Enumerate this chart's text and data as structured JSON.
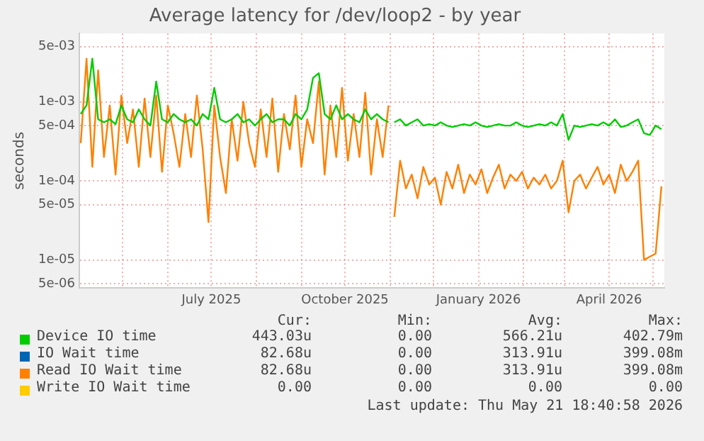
{
  "chart_data": {
    "type": "line",
    "title": "Average latency for /dev/loop2 - by year",
    "ylabel": "seconds",
    "log": "y",
    "grid": true,
    "legend": "bottom",
    "marker": "none",
    "line_style": "solid",
    "xlim": [
      "2025-04-01",
      "2026-05-09"
    ],
    "xticks": [
      {
        "value": "2025-05-01",
        "label": null
      },
      {
        "value": "2025-06-01",
        "label": null
      },
      {
        "value": "2025-07-01",
        "label": "July 2025"
      },
      {
        "value": "2025-08-01",
        "label": null
      },
      {
        "value": "2025-09-01",
        "label": null
      },
      {
        "value": "2025-10-01",
        "label": "October 2025"
      },
      {
        "value": "2025-11-01",
        "label": null
      },
      {
        "value": "2025-12-01",
        "label": null
      },
      {
        "value": "2026-01-01",
        "label": "January 2026"
      },
      {
        "value": "2026-02-01",
        "label": null
      },
      {
        "value": "2026-03-01",
        "label": null
      },
      {
        "value": "2026-04-01",
        "label": "April 2026"
      },
      {
        "value": "2026-05-01",
        "label": null
      }
    ],
    "ylim": [
      4.4e-06,
      0.0073
    ],
    "yticks": [
      {
        "value": 5e-06,
        "label": "5e-06"
      },
      {
        "value": 1e-05,
        "label": "1e-05"
      },
      {
        "value": 5e-05,
        "label": "5e-05"
      },
      {
        "value": 0.0001,
        "label": "1e-04"
      },
      {
        "value": 0.0005,
        "label": "5e-04"
      },
      {
        "value": 0.001,
        "label": "1e-03"
      },
      {
        "value": 0.005,
        "label": "5e-03"
      }
    ],
    "x": [
      "2025-04-02",
      "2025-04-06",
      "2025-04-10",
      "2025-04-14",
      "2025-04-18",
      "2025-04-22",
      "2025-04-26",
      "2025-04-30",
      "2025-05-04",
      "2025-05-08",
      "2025-05-12",
      "2025-05-16",
      "2025-05-20",
      "2025-05-24",
      "2025-05-28",
      "2025-06-01",
      "2025-06-05",
      "2025-06-09",
      "2025-06-13",
      "2025-06-17",
      "2025-06-21",
      "2025-06-25",
      "2025-06-29",
      "2025-07-03",
      "2025-07-07",
      "2025-07-11",
      "2025-07-15",
      "2025-07-19",
      "2025-07-23",
      "2025-07-27",
      "2025-07-31",
      "2025-08-04",
      "2025-08-08",
      "2025-08-12",
      "2025-08-16",
      "2025-08-20",
      "2025-08-24",
      "2025-08-28",
      "2025-09-01",
      "2025-09-05",
      "2025-09-09",
      "2025-09-13",
      "2025-09-17",
      "2025-09-21",
      "2025-09-25",
      "2025-09-29",
      "2025-10-03",
      "2025-10-07",
      "2025-10-11",
      "2025-10-15",
      "2025-10-19",
      "2025-10-23",
      "2025-10-27",
      "2025-10-31",
      "2025-11-02",
      "2025-11-04",
      "2025-11-08",
      "2025-11-12",
      "2025-11-16",
      "2025-11-20",
      "2025-11-24",
      "2025-11-28",
      "2025-12-02",
      "2025-12-06",
      "2025-12-10",
      "2025-12-14",
      "2025-12-18",
      "2025-12-22",
      "2025-12-26",
      "2025-12-30",
      "2026-01-03",
      "2026-01-07",
      "2026-01-11",
      "2026-01-15",
      "2026-01-19",
      "2026-01-23",
      "2026-01-27",
      "2026-01-31",
      "2026-02-04",
      "2026-02-08",
      "2026-02-12",
      "2026-02-16",
      "2026-02-20",
      "2026-02-24",
      "2026-02-28",
      "2026-03-04",
      "2026-03-08",
      "2026-03-12",
      "2026-03-16",
      "2026-03-20",
      "2026-03-24",
      "2026-03-28",
      "2026-04-01",
      "2026-04-05",
      "2026-04-09",
      "2026-04-13",
      "2026-04-17",
      "2026-04-21",
      "2026-04-25",
      "2026-04-29",
      "2026-05-03",
      "2026-05-07"
    ],
    "series": [
      {
        "name": "Device IO time",
        "color": "#00cc00",
        "values": [
          0.0007,
          0.0009,
          0.0035,
          0.0006,
          0.00055,
          0.0006,
          0.00052,
          0.0009,
          0.0006,
          0.00055,
          0.0008,
          0.0006,
          0.0005,
          0.0018,
          0.0006,
          0.00055,
          0.0007,
          0.0006,
          0.00055,
          0.0006,
          0.0005,
          0.0007,
          0.0006,
          0.0015,
          0.0006,
          0.00055,
          0.0006,
          0.0007,
          0.00055,
          0.0006,
          0.0005,
          0.0006,
          0.0007,
          0.00055,
          0.0006,
          0.0006,
          0.0005,
          0.0007,
          0.0006,
          0.0008,
          0.002,
          0.0023,
          0.0007,
          0.0006,
          0.0009,
          0.0006,
          0.0007,
          0.0006,
          0.00055,
          0.0008,
          0.0006,
          0.0007,
          0.0006,
          0.00055,
          null,
          0.00055,
          0.0006,
          0.0005,
          0.00055,
          0.0006,
          0.0005,
          0.00052,
          0.0005,
          0.00055,
          0.0005,
          0.00048,
          0.0005,
          0.00052,
          0.0005,
          0.00055,
          0.0005,
          0.00048,
          0.0005,
          0.00052,
          0.0005,
          0.0005,
          0.00055,
          0.0005,
          0.00048,
          0.0005,
          0.00052,
          0.0005,
          0.00055,
          0.0005,
          0.0007,
          0.00033,
          0.0005,
          0.00048,
          0.0005,
          0.00052,
          0.0005,
          0.00055,
          0.0005,
          0.0006,
          0.00048,
          0.0005,
          0.00055,
          0.0006,
          0.0004,
          0.00038,
          0.0005,
          0.00045
        ]
      },
      {
        "name": "IO Wait time",
        "color": "#0066b3",
        "values": [
          null,
          null,
          null,
          null,
          null,
          null,
          null,
          null,
          null,
          null,
          null,
          null,
          null,
          null,
          null,
          null,
          null,
          null,
          null,
          null,
          null,
          null,
          null,
          null,
          null,
          null,
          null,
          null,
          null,
          null,
          null,
          null,
          null,
          null,
          null,
          null,
          null,
          null,
          null,
          null,
          null,
          null,
          null,
          null,
          null,
          null,
          null,
          null,
          null,
          null,
          null,
          null,
          null,
          null,
          null,
          null,
          null,
          null,
          null,
          null,
          null,
          null,
          null,
          null,
          null,
          null,
          null,
          null,
          null,
          null,
          null,
          null,
          null,
          null,
          null,
          null,
          null,
          null,
          null,
          null,
          null,
          null,
          null,
          null,
          null,
          null,
          null,
          null,
          null,
          null,
          null,
          null,
          null,
          null,
          null,
          null,
          null,
          null,
          null,
          null,
          null,
          null
        ]
      },
      {
        "name": "Read IO Wait time",
        "color": "#ff8000",
        "values": [
          0.0003,
          0.0035,
          0.00015,
          0.0025,
          0.0002,
          0.0009,
          0.00012,
          0.0012,
          0.0003,
          0.0008,
          0.00015,
          0.0011,
          0.0002,
          0.0012,
          0.00013,
          0.0009,
          0.0004,
          0.00015,
          0.0007,
          0.0002,
          0.0012,
          0.00025,
          3e-05,
          0.0009,
          0.0002,
          7e-05,
          0.0006,
          0.00018,
          0.001,
          0.0003,
          0.00015,
          0.0008,
          0.0002,
          0.0011,
          0.00013,
          0.0007,
          0.00025,
          0.0012,
          0.00015,
          0.0006,
          0.0003,
          0.0018,
          0.00012,
          0.0009,
          0.0002,
          0.0015,
          0.00018,
          0.0007,
          0.0002,
          0.0013,
          0.00012,
          0.0006,
          0.0002,
          0.0009,
          null,
          3.5e-05,
          0.00018,
          8e-05,
          0.00012,
          6e-05,
          0.00015,
          9e-05,
          0.00011,
          5e-05,
          0.00013,
          8e-05,
          0.00016,
          7e-05,
          0.00012,
          9e-05,
          0.00014,
          7e-05,
          0.00011,
          0.00016,
          8e-05,
          0.00012,
          0.0001,
          0.00013,
          8e-05,
          0.00011,
          9e-05,
          0.00012,
          8e-05,
          0.0001,
          0.00018,
          4e-05,
          0.0001,
          0.00012,
          8e-05,
          0.00011,
          0.00015,
          9e-05,
          0.00012,
          7e-05,
          0.00016,
          0.0001,
          0.00013,
          0.00018,
          1e-05,
          1.1e-05,
          1.2e-05,
          8.5e-05
        ]
      },
      {
        "name": "Write IO Wait time",
        "color": "#ffcc00",
        "values": [
          null,
          null,
          null,
          null,
          null,
          null,
          null,
          null,
          null,
          null,
          null,
          null,
          null,
          null,
          null,
          null,
          null,
          null,
          null,
          null,
          null,
          null,
          null,
          null,
          null,
          null,
          null,
          null,
          null,
          null,
          null,
          null,
          null,
          null,
          null,
          null,
          null,
          null,
          null,
          null,
          null,
          null,
          null,
          null,
          null,
          null,
          null,
          null,
          null,
          null,
          null,
          null,
          null,
          null,
          null,
          null,
          null,
          null,
          null,
          null,
          null,
          null,
          null,
          null,
          null,
          null,
          null,
          null,
          null,
          null,
          null,
          null,
          null,
          null,
          null,
          null,
          null,
          null,
          null,
          null,
          null,
          null,
          null,
          null,
          null,
          null,
          null,
          null,
          null,
          null,
          null,
          null,
          null,
          null,
          null,
          null,
          null,
          null,
          null,
          null,
          null,
          null
        ]
      }
    ],
    "annotations": [
      "Cur:",
      "Min:",
      "Avg:",
      "Max:",
      "443.03u",
      "0.00",
      "566.21u",
      "402.79m",
      "82.68u",
      "0.00",
      "313.91u",
      "399.08m",
      "82.68u",
      "0.00",
      "313.91u",
      "399.08m",
      "0.00",
      "0.00",
      "0.00",
      "0.00",
      "Last update: Thu May 21 18:40:58 2026"
    ]
  }
}
